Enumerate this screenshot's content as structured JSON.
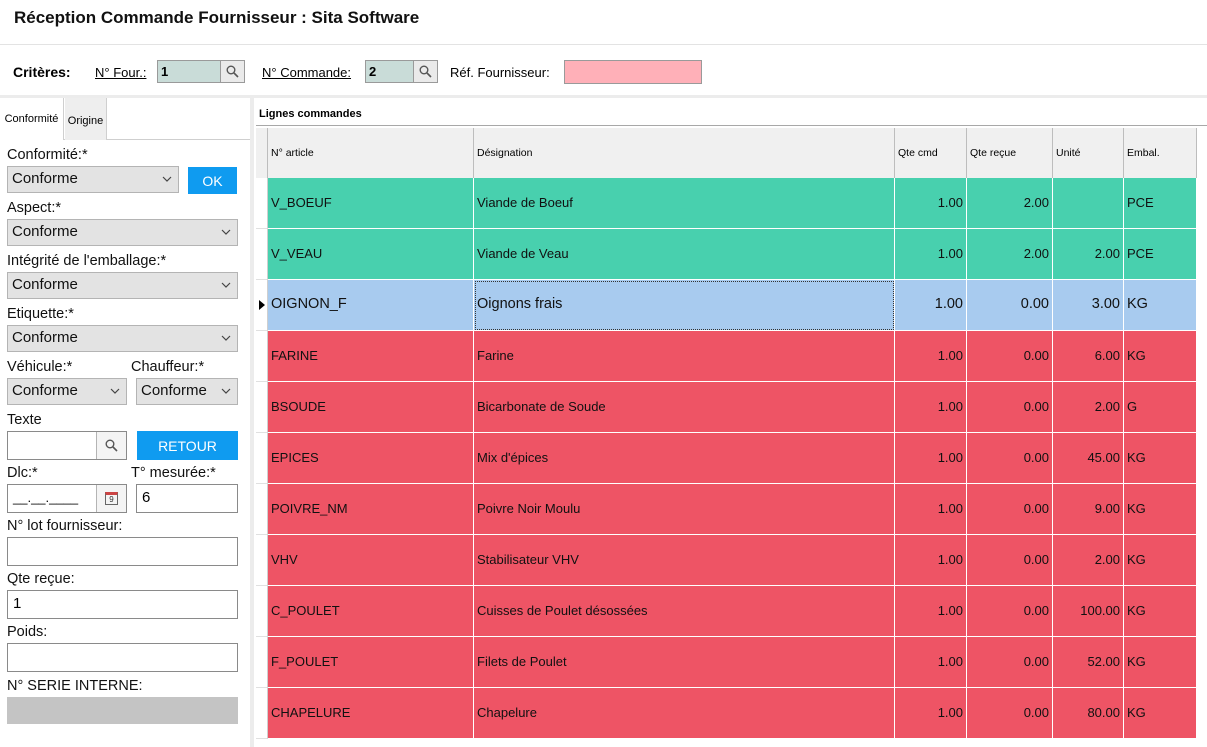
{
  "window": {
    "title": "Réception Commande Fournisseur : Sita Software"
  },
  "criteria": {
    "label": "Critères:",
    "supplier_no_label": "N° Four.:",
    "supplier_no_value": "1",
    "order_no_label": "N° Commande:",
    "order_no_value": "2",
    "supplier_ref_label": "Réf. Fournisseur:",
    "supplier_ref_value": ""
  },
  "tabs": [
    "Conformité",
    "Origine"
  ],
  "form": {
    "conformite_label": "Conformité:*",
    "conformite_value": "Conforme",
    "ok_button": "OK",
    "aspect_label": "Aspect:*",
    "aspect_value": "Conforme",
    "integrite_label": "Intégrité de l'emballage:*",
    "integrite_value": "Conforme",
    "etiquette_label": "Etiquette:*",
    "etiquette_value": "Conforme",
    "vehicule_label": "Véhicule:*",
    "vehicule_value": "Conforme",
    "chauffeur_label": "Chauffeur:*",
    "chauffeur_value": "Conforme",
    "texte_label": "Texte",
    "texte_value": "",
    "retour_button": "RETOUR",
    "dlc_label": "Dlc:*",
    "dlc_value": "__.__.____",
    "calendar_day": "9",
    "temp_label": "T° mesurée:*",
    "temp_value": "6",
    "lot_label": "N° lot fournisseur:",
    "lot_value": "",
    "qte_label": "Qte reçue:",
    "qte_value": "1",
    "poids_label": "Poids:",
    "poids_value": "",
    "serie_label": "N° SERIE INTERNE:",
    "serie_value": ""
  },
  "grid": {
    "title": "Lignes commandes",
    "columns": [
      "N° article",
      "Désignation",
      "Qte cmd",
      "Qte reçue",
      "Unité",
      "Embal."
    ],
    "rows": [
      {
        "status": "green",
        "article": "V_BOEUF",
        "designation": "Viande de Boeuf",
        "qte_cmd": "1.00",
        "qte_recue": "2.00",
        "unite": "",
        "embal": "PCE"
      },
      {
        "status": "green",
        "article": "V_VEAU",
        "designation": "Viande de Veau",
        "qte_cmd": "1.00",
        "qte_recue": "2.00",
        "unite": "2.00",
        "embal": "PCE"
      },
      {
        "status": "blue",
        "article": "OIGNON_F",
        "designation": "Oignons frais",
        "qte_cmd": "1.00",
        "qte_recue": "0.00",
        "unite": "3.00",
        "embal": "KG"
      },
      {
        "status": "red",
        "article": "FARINE",
        "designation": "Farine",
        "qte_cmd": "1.00",
        "qte_recue": "0.00",
        "unite": "6.00",
        "embal": "KG"
      },
      {
        "status": "red",
        "article": "BSOUDE",
        "designation": "Bicarbonate de Soude",
        "qte_cmd": "1.00",
        "qte_recue": "0.00",
        "unite": "2.00",
        "embal": "G"
      },
      {
        "status": "red",
        "article": "EPICES",
        "designation": "Mix d'épices",
        "qte_cmd": "1.00",
        "qte_recue": "0.00",
        "unite": "45.00",
        "embal": "KG"
      },
      {
        "status": "red",
        "article": "POIVRE_NM",
        "designation": "Poivre Noir Moulu",
        "qte_cmd": "1.00",
        "qte_recue": "0.00",
        "unite": "9.00",
        "embal": "KG"
      },
      {
        "status": "red",
        "article": "VHV",
        "designation": "Stabilisateur VHV",
        "qte_cmd": "1.00",
        "qte_recue": "0.00",
        "unite": "2.00",
        "embal": "KG"
      },
      {
        "status": "red",
        "article": "C_POULET",
        "designation": "Cuisses de Poulet désossées",
        "qte_cmd": "1.00",
        "qte_recue": "0.00",
        "unite": "100.00",
        "embal": "KG"
      },
      {
        "status": "red",
        "article": "F_POULET",
        "designation": "Filets de Poulet",
        "qte_cmd": "1.00",
        "qte_recue": "0.00",
        "unite": "52.00",
        "embal": "KG"
      },
      {
        "status": "red",
        "article": "CHAPELURE",
        "designation": "Chapelure",
        "qte_cmd": "1.00",
        "qte_recue": "0.00",
        "unite": "80.00",
        "embal": "KG"
      }
    ]
  },
  "colors": {
    "green": "#48d0ae",
    "red": "#ee5465",
    "blue_selected": "#a8cbef",
    "accent_button": "#0f9bf0",
    "ref_field": "#ffb0b8"
  },
  "icons": [
    "search-icon",
    "chevron-down-icon",
    "calendar-icon",
    "row-pointer-icon"
  ]
}
